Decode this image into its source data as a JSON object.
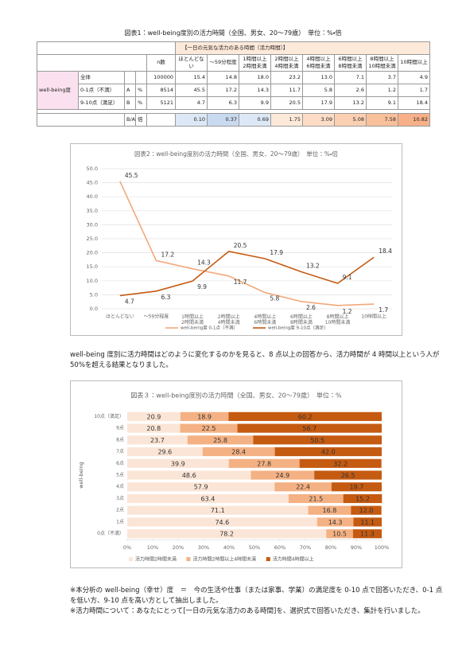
{
  "table": {
    "title": "図表1：well-being度別の活力時間（全国、男女、20～79歳）　単位：%・倍",
    "group_header": "【一日の元気な活力のある時間（活力時間）】",
    "columns": [
      "n数",
      "ほとんどない",
      "～59分程度",
      "1時間以上\n2時間未満",
      "2時間以上\n4時間未満",
      "4時間以上\n6時間未満",
      "6時間以上\n8時間未満",
      "8時間以上\n10時間未満",
      "10時間以上"
    ],
    "row_group": "well-being度",
    "rows": [
      {
        "label": "全体",
        "n": "100000",
        "cells": [
          "15.4",
          "14.8",
          "18.0",
          "23.2",
          "13.0",
          "7.1",
          "3.7",
          "4.9"
        ]
      },
      {
        "label": "0-1点（不満）",
        "code": "A",
        "unit": "%",
        "n": "8514",
        "cells": [
          "45.5",
          "17.2",
          "14.3",
          "11.7",
          "5.8",
          "2.6",
          "1.2",
          "1.7"
        ]
      },
      {
        "label": "9-10点（満足）",
        "code": "B",
        "unit": "%",
        "n": "5121",
        "cells": [
          "4.7",
          "6.3",
          "9.9",
          "20.5",
          "17.9",
          "13.2",
          "9.1",
          "18.4"
        ]
      }
    ],
    "ratio": {
      "code": "B/A",
      "unit": "倍",
      "cells": [
        "0.10",
        "0.37",
        "0.69",
        "1.75",
        "3.09",
        "5.08",
        "7.58",
        "10.82"
      ],
      "colors": [
        "#dde8f6",
        "#c9daf0",
        "#dde8f6",
        "#fde9d9",
        "#fcdcc6",
        "#fbcfb2",
        "#f9c09c",
        "#f7b088"
      ]
    }
  },
  "chart_data": [
    {
      "type": "line",
      "title": "図表2：well-being度別の活力時間（全国、男女、20～79歳）　単位：%・倍",
      "categories": [
        "ほとんどない",
        "～59分程度",
        "1時間以上\n2時間未満",
        "2時間以上\n4時間未満",
        "4時間以上\n6時間未満",
        "6時間以上\n8時間未満",
        "8時間以上\n10時間未満",
        "10時間以上"
      ],
      "series": [
        {
          "name": "well-being度 0-1点（不満）",
          "color": "#f1a97a",
          "values": [
            45.5,
            17.2,
            14.3,
            11.7,
            5.8,
            2.6,
            1.2,
            1.7
          ]
        },
        {
          "name": "well-being度 9-10点（満足）",
          "color": "#c55a11",
          "values": [
            4.7,
            6.3,
            9.9,
            20.5,
            17.9,
            13.2,
            9.1,
            18.4
          ]
        }
      ],
      "ylim": [
        0,
        50
      ],
      "yticks": [
        {
          "value": 0,
          "label": "0.0"
        },
        {
          "value": 5,
          "label": "5.0"
        },
        {
          "value": 10,
          "label": "10.0"
        },
        {
          "value": 15,
          "label": "15.0"
        },
        {
          "value": 20,
          "label": "20.0"
        },
        {
          "value": 25,
          "label": "25.0"
        },
        {
          "value": 30,
          "label": "30.0"
        },
        {
          "value": 35,
          "label": "35.0"
        },
        {
          "value": 40,
          "label": "40.0"
        },
        {
          "value": 45,
          "label": "45.0"
        },
        {
          "value": 50,
          "label": "50.0"
        }
      ],
      "grid": true,
      "legend": "bottom"
    },
    {
      "type": "stacked-bar-horizontal",
      "title": "図表３：well-being度別の活力時間（全国、男女、20～79歳）　単位：%",
      "y_label": "well-being",
      "categories": [
        "10点（満足）",
        "9点",
        "8点",
        "7点",
        "6点",
        "5点",
        "4点",
        "3点",
        "2点",
        "1点",
        "0点（不満）"
      ],
      "series": [
        {
          "name": "活力時間2時間未満",
          "color": "#fbe5d6",
          "values": [
            20.9,
            20.8,
            23.7,
            29.6,
            39.9,
            48.6,
            57.9,
            63.4,
            71.1,
            74.6,
            78.2
          ]
        },
        {
          "name": "活力時間2時間以上4時間未満",
          "color": "#f4b183",
          "values": [
            18.9,
            22.5,
            25.8,
            28.4,
            27.8,
            24.9,
            22.4,
            21.5,
            16.8,
            14.3,
            10.5
          ]
        },
        {
          "name": "活力時間4時間以上",
          "color": "#c55a11",
          "values": [
            60.2,
            56.7,
            50.5,
            42,
            32.2,
            26.5,
            19.7,
            15.2,
            12,
            11.1,
            11.3
          ],
          "value_labels": [
            "60.2",
            "56.7",
            "50.5",
            "42.0",
            "32.2",
            "26.5",
            "19.7",
            "15.2",
            "12.0",
            "11.1",
            "11.3"
          ]
        }
      ],
      "xlim": [
        0,
        100
      ],
      "xticks": [
        {
          "value": 0,
          "label": "0%"
        },
        {
          "value": 10,
          "label": "10%"
        },
        {
          "value": 20,
          "label": "20%"
        },
        {
          "value": 30,
          "label": "30%"
        },
        {
          "value": 40,
          "label": "40%"
        },
        {
          "value": 50,
          "label": "50%"
        },
        {
          "value": 60,
          "label": "60%"
        },
        {
          "value": 70,
          "label": "70%"
        },
        {
          "value": 80,
          "label": "80%"
        },
        {
          "value": 90,
          "label": "90%"
        },
        {
          "value": 100,
          "label": "100%"
        }
      ],
      "legend": "bottom"
    }
  ],
  "paragraph": "well-being 度別に活力時間はどのように変化するのかを見ると、8 点以上の回答から、活力時間が 4 時間以上という人が 50%を超える結果となりました。",
  "notes": [
    "※本分析の well-being（幸せ）度　＝　今の生活や仕事（または家事、学業）の満足度を 0-10 点で回答いただき、0-1 点を低い方、9-10 点を高い方として抽出しました。",
    "※活力時間について：あなたにとって[一日の元気な活力のある時間]を、選択式で回答いただき、集計を行いました。"
  ]
}
